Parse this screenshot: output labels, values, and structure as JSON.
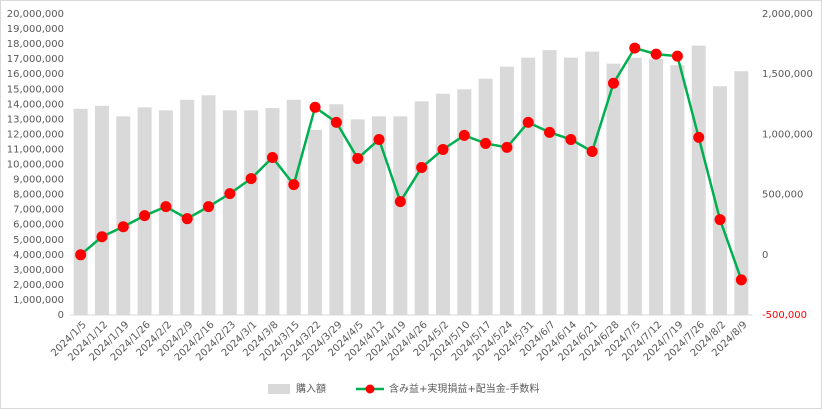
{
  "chart_data": {
    "type": "bar-line",
    "categories": [
      "2024/1/5",
      "2024/1/12",
      "2024/1/19",
      "2024/1/26",
      "2024/2/2",
      "2024/2/9",
      "2024/2/16",
      "2024/2/23",
      "2024/3/1",
      "2024/3/8",
      "2024/3/15",
      "2024/3/22",
      "2024/3/29",
      "2024/4/5",
      "2024/4/12",
      "2024/4/19",
      "2024/4/26",
      "2024/5/2",
      "2024/5/10",
      "2024/5/17",
      "2024/5/24",
      "2024/5/31",
      "2024/6/7",
      "2024/6/14",
      "2024/6/21",
      "2024/6/28",
      "2024/7/5",
      "2024/7/12",
      "2024/7/19",
      "2024/7/26",
      "2024/8/2",
      "2024/8/9"
    ],
    "series": [
      {
        "name": "購入額",
        "type": "bar",
        "color": "#d9d9d9",
        "values": [
          13700000,
          13900000,
          13200000,
          13800000,
          13600000,
          14300000,
          14600000,
          13600000,
          13600000,
          13750000,
          14300000,
          12300000,
          14000000,
          13000000,
          13200000,
          13200000,
          14200000,
          14700000,
          15000000,
          15700000,
          16500000,
          17100000,
          17600000,
          17100000,
          17500000,
          16700000,
          17100000,
          17000000,
          16600000,
          17900000,
          15200000,
          16200000
        ]
      },
      {
        "name": "含み益+実現損益+配当金-手数料",
        "type": "line",
        "axis": "y2",
        "color": "#00b050",
        "marker_color": "#ff0000",
        "values": [
          0,
          150000,
          233000,
          325000,
          400000,
          300000,
          400000,
          508000,
          633000,
          808000,
          583000,
          1225000,
          1100000,
          800000,
          958000,
          442000,
          725000,
          875000,
          992000,
          925000,
          892000,
          1100000,
          1017000,
          958000,
          858000,
          1425000,
          1717000,
          1667000,
          1650000,
          975000,
          292000,
          -208000
        ]
      }
    ],
    "ylim": [
      0,
      20000000
    ],
    "yticks": [
      0,
      {
        "value": 1000000,
        "label": "1,000,000"
      },
      {
        "value": 2000000,
        "label": "2,000,000"
      },
      {
        "value": 3000000,
        "label": "3,000,000"
      },
      {
        "value": 4000000,
        "label": "4,000,000"
      },
      {
        "value": 5000000,
        "label": "5,000,000"
      },
      {
        "value": 6000000,
        "label": "6,000,000"
      },
      {
        "value": 7000000,
        "label": "7,000,000"
      },
      {
        "value": 8000000,
        "label": "8,000,000"
      },
      {
        "value": 9000000,
        "label": "9,000,000"
      },
      {
        "value": 10000000,
        "label": "10,000,000"
      },
      {
        "value": 11000000,
        "label": "11,000,000"
      },
      {
        "value": 12000000,
        "label": "12,000,000"
      },
      {
        "value": 13000000,
        "label": "13,000,000"
      },
      {
        "value": 14000000,
        "label": "14,000,000"
      },
      {
        "value": 15000000,
        "label": "15,000,000"
      },
      {
        "value": 16000000,
        "label": "16,000,000"
      },
      {
        "value": 17000000,
        "label": "17,000,000"
      },
      {
        "value": 18000000,
        "label": "18,000,000"
      },
      {
        "value": 19000000,
        "label": "19,000,000"
      },
      {
        "value": 20000000,
        "label": "20,000,000"
      }
    ],
    "y2lim": [
      -500000,
      2000000
    ],
    "y2ticks": [
      {
        "value": -500000,
        "label": "-500,000"
      },
      0,
      {
        "value": 500000,
        "label": "500,000"
      },
      {
        "value": 1000000,
        "label": "1,000,000"
      },
      {
        "value": 1500000,
        "label": "1,500,000"
      },
      {
        "value": 2000000,
        "label": "2,000,000"
      }
    ],
    "legend": "bottom"
  }
}
